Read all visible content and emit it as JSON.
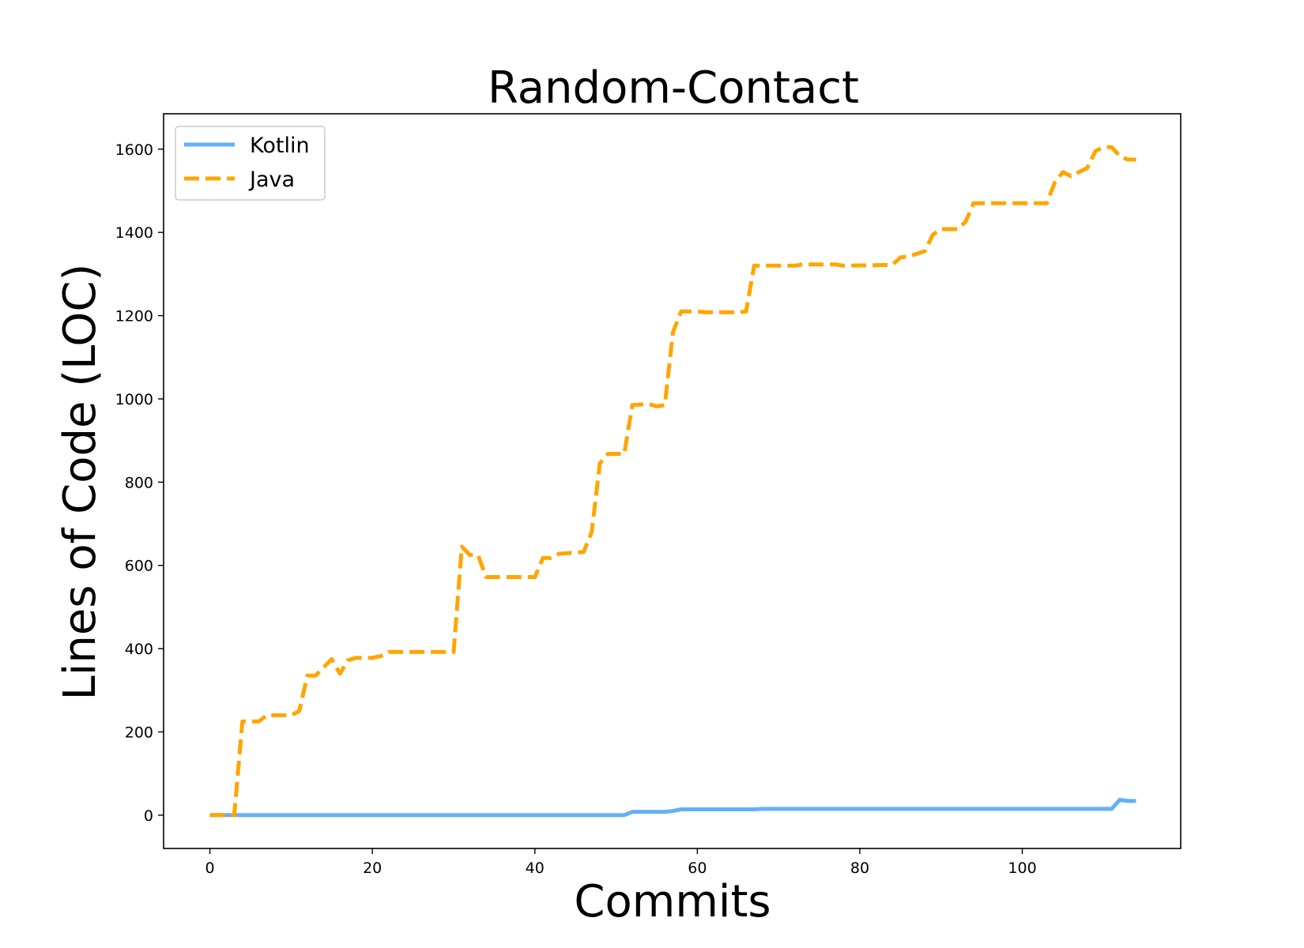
{
  "chart_data": {
    "type": "line",
    "title": "Random-Contact",
    "xlabel": "Commits",
    "ylabel": "Lines of Code (LOC)",
    "xlim": [
      -5.7,
      119.5
    ],
    "ylim": [
      -80,
      1685
    ],
    "xticks": [
      0,
      20,
      40,
      60,
      80,
      100
    ],
    "yticks": [
      0,
      200,
      400,
      600,
      800,
      1000,
      1200,
      1400,
      1600
    ],
    "grid": false,
    "legend_position": "top-left",
    "series": [
      {
        "name": "Kotlin",
        "color": "#64b0f7",
        "style": "solid",
        "points": [
          [
            0,
            0
          ],
          [
            51,
            0
          ],
          [
            52,
            8
          ],
          [
            56,
            8
          ],
          [
            57,
            10
          ],
          [
            58,
            14
          ],
          [
            67,
            14
          ],
          [
            68,
            15
          ],
          [
            111,
            15
          ],
          [
            112,
            37
          ],
          [
            113,
            34
          ],
          [
            114,
            34
          ]
        ]
      },
      {
        "name": "Java",
        "color": "#ffa500",
        "style": "dashed",
        "points": [
          [
            0,
            0
          ],
          [
            3,
            0
          ],
          [
            4,
            225
          ],
          [
            6,
            225
          ],
          [
            7,
            240
          ],
          [
            10,
            240
          ],
          [
            11,
            250
          ],
          [
            12,
            335
          ],
          [
            13,
            335
          ],
          [
            14,
            355
          ],
          [
            15,
            375
          ],
          [
            16,
            340
          ],
          [
            17,
            372
          ],
          [
            18,
            378
          ],
          [
            20,
            378
          ],
          [
            21,
            382
          ],
          [
            22,
            392
          ],
          [
            30,
            392
          ],
          [
            31,
            645
          ],
          [
            32,
            625
          ],
          [
            33,
            625
          ],
          [
            34,
            572
          ],
          [
            40,
            572
          ],
          [
            41,
            618
          ],
          [
            42,
            618
          ],
          [
            43,
            628
          ],
          [
            46,
            632
          ],
          [
            47,
            680
          ],
          [
            48,
            845
          ],
          [
            49,
            868
          ],
          [
            51,
            868
          ],
          [
            52,
            985
          ],
          [
            54,
            988
          ],
          [
            55,
            982
          ],
          [
            56,
            985
          ],
          [
            57,
            1160
          ],
          [
            58,
            1210
          ],
          [
            60,
            1210
          ],
          [
            61,
            1208
          ],
          [
            65,
            1208
          ],
          [
            66,
            1210
          ],
          [
            67,
            1320
          ],
          [
            72,
            1320
          ],
          [
            73,
            1323
          ],
          [
            77,
            1323
          ],
          [
            78,
            1320
          ],
          [
            84,
            1322
          ],
          [
            85,
            1340
          ],
          [
            86,
            1342
          ],
          [
            88,
            1355
          ],
          [
            89,
            1395
          ],
          [
            90,
            1408
          ],
          [
            92,
            1408
          ],
          [
            93,
            1425
          ],
          [
            94,
            1470
          ],
          [
            103,
            1470
          ],
          [
            104,
            1520
          ],
          [
            105,
            1545
          ],
          [
            106,
            1535
          ],
          [
            108,
            1555
          ],
          [
            109,
            1595
          ],
          [
            110,
            1605
          ],
          [
            111,
            1605
          ],
          [
            112,
            1583
          ],
          [
            113,
            1575
          ],
          [
            114,
            1575
          ]
        ]
      }
    ]
  }
}
